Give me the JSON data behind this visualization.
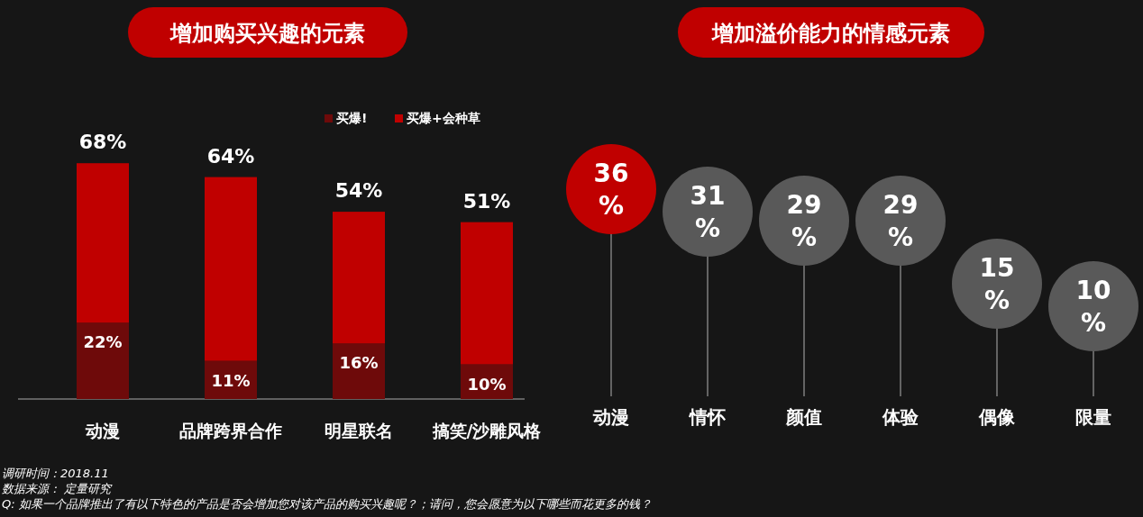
{
  "chart_data": [
    {
      "type": "bar",
      "title": "增加购买兴趣的元素",
      "stacked": true,
      "legend": "top right",
      "categories": [
        "动漫",
        "品牌跨界合作",
        "明星联名",
        "搞笑/沙雕风格"
      ],
      "series": [
        {
          "name": "买爆!",
          "color": "#6e0a0a",
          "values": [
            22,
            11,
            16,
            10
          ],
          "value_labels": [
            "22%",
            "11%",
            "16%",
            "10%"
          ]
        },
        {
          "name": "买爆+会种草",
          "color": "#c00000",
          "values": [
            46,
            53,
            38,
            41
          ]
        }
      ],
      "totals": [
        "68%",
        "64%",
        "54%",
        "51%"
      ],
      "annotations": [
        "调研时间：2018.11",
        "数据来源： 定量研究",
        "Q: 如果一个品牌推出了有以下特色的产品是否会增加您对该产品的购买兴趣呢？；请问，您会愿意为以下哪些而花更多的钱？"
      ]
    },
    {
      "type": "lollipop",
      "title": "增加溢价能力的情感元素",
      "categories": [
        "动漫",
        "情怀",
        "颜值",
        "体验",
        "偶像",
        "限量"
      ],
      "values": [
        36,
        31,
        29,
        29,
        15,
        10
      ],
      "colors": [
        "#c00000",
        "#595959",
        "#595959",
        "#595959",
        "#595959",
        "#595959"
      ],
      "value_labels": [
        "36\n%",
        "31\n%",
        "29\n%",
        "29\n%",
        "15\n%",
        "10\n%"
      ]
    }
  ]
}
